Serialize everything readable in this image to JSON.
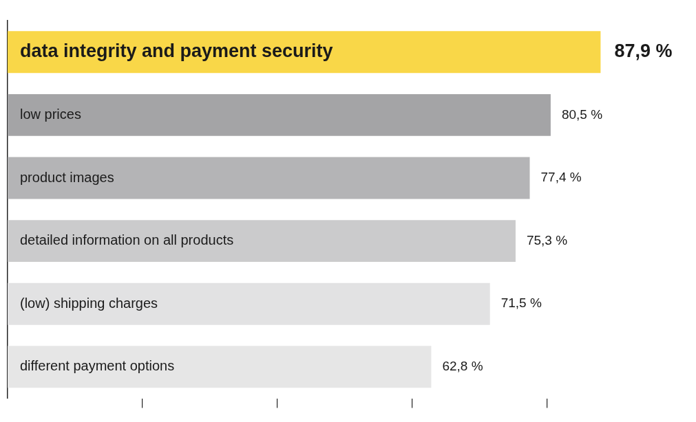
{
  "chart_data": {
    "type": "bar",
    "orientation": "horizontal",
    "categories": [
      "data integrity and payment security",
      "low prices",
      "product images",
      "detailed information on all products",
      "(low) shipping charges",
      "different payment options"
    ],
    "values": [
      87.9,
      80.5,
      77.4,
      75.3,
      71.5,
      62.8
    ],
    "value_labels": [
      "87,9 %",
      "80,5 %",
      "77,4 %",
      "75,3 %",
      "71,5 %",
      "62,8 %"
    ],
    "colors": [
      "#f9d748",
      "#a4a4a6",
      "#b4b4b6",
      "#cbcbcc",
      "#e2e2e3",
      "#e6e6e6"
    ],
    "xticks": [
      {
        "value": 20,
        "label": null
      },
      {
        "value": 40,
        "label": null
      },
      {
        "value": 60,
        "label": null
      },
      {
        "value": 80,
        "label": null
      }
    ],
    "grid": false,
    "legend": false
  }
}
